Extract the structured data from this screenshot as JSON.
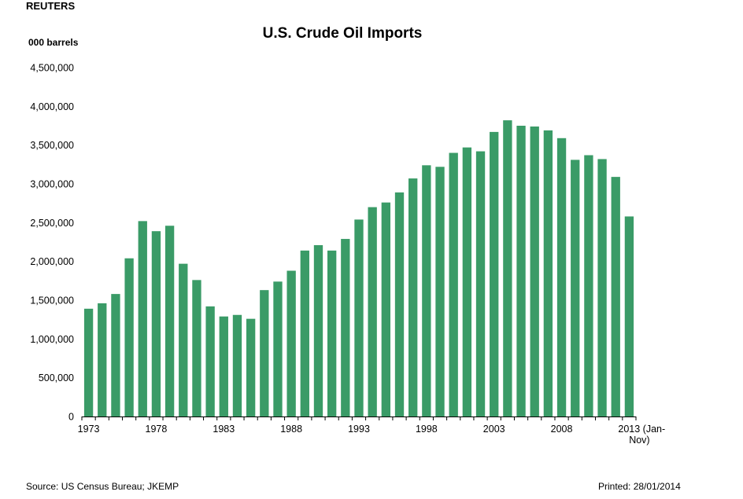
{
  "header": {
    "brand": "REUTERS",
    "title": "U.S. Crude Oil Imports",
    "unit_label": "000 barrels"
  },
  "footer": {
    "source": "Source: US Census Bureau; JKEMP",
    "printed": "Printed: 28/01/2014"
  },
  "colors": {
    "bar": "#3a9b67",
    "axis": "#000000"
  },
  "chart_data": {
    "type": "bar",
    "title": "U.S. Crude Oil Imports",
    "ylabel": "000 barrels",
    "ylim": [
      0,
      4500000
    ],
    "yticks": [
      0,
      500000,
      1000000,
      1500000,
      2000000,
      2500000,
      3000000,
      3500000,
      4000000,
      4500000
    ],
    "ytick_labels": [
      "0",
      "500,000",
      "1,000,000",
      "1,500,000",
      "2,000,000",
      "2,500,000",
      "3,000,000",
      "3,500,000",
      "4,000,000",
      "4,500,000"
    ],
    "xtick_labels": [
      {
        "index": 0,
        "lines": [
          "1973"
        ]
      },
      {
        "index": 5,
        "lines": [
          "1978"
        ]
      },
      {
        "index": 10,
        "lines": [
          "1983"
        ]
      },
      {
        "index": 15,
        "lines": [
          "1988"
        ]
      },
      {
        "index": 20,
        "lines": [
          "1993"
        ]
      },
      {
        "index": 25,
        "lines": [
          "1998"
        ]
      },
      {
        "index": 30,
        "lines": [
          "2003"
        ]
      },
      {
        "index": 35,
        "lines": [
          "2008"
        ]
      },
      {
        "index": 40,
        "lines": [
          "2013 (Jan-",
          "Nov)"
        ]
      }
    ],
    "categories": [
      "1973",
      "1974",
      "1975",
      "1976",
      "1977",
      "1978",
      "1979",
      "1980",
      "1981",
      "1982",
      "1983",
      "1984",
      "1985",
      "1986",
      "1987",
      "1988",
      "1989",
      "1990",
      "1991",
      "1992",
      "1993",
      "1994",
      "1995",
      "1996",
      "1997",
      "1998",
      "1999",
      "2000",
      "2001",
      "2002",
      "2003",
      "2004",
      "2005",
      "2006",
      "2007",
      "2008",
      "2009",
      "2010",
      "2011",
      "2012",
      "2013 (Jan-Nov)"
    ],
    "values": [
      1390000,
      1460000,
      1580000,
      2040000,
      2520000,
      2390000,
      2460000,
      1970000,
      1760000,
      1420000,
      1290000,
      1310000,
      1260000,
      1630000,
      1740000,
      1880000,
      2140000,
      2210000,
      2140000,
      2290000,
      2540000,
      2700000,
      2760000,
      2890000,
      3070000,
      3240000,
      3220000,
      3400000,
      3470000,
      3420000,
      3670000,
      3820000,
      3750000,
      3740000,
      3690000,
      3590000,
      3310000,
      3370000,
      3320000,
      3090000,
      2580000
    ],
    "grid": false,
    "legend": "none"
  }
}
